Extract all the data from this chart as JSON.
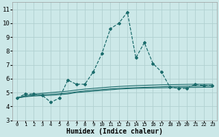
{
  "title": "",
  "xlabel": "Humidex (Indice chaleur)",
  "bg_color": "#cce8e8",
  "grid_color": "#b0d0d0",
  "line_color": "#1a6b6b",
  "xlim": [
    -0.5,
    23.5
  ],
  "ylim": [
    3,
    11.5
  ],
  "yticks": [
    3,
    4,
    5,
    6,
    7,
    8,
    9,
    10,
    11
  ],
  "xticks": [
    0,
    1,
    2,
    3,
    4,
    5,
    6,
    7,
    8,
    9,
    10,
    11,
    12,
    13,
    14,
    15,
    16,
    17,
    18,
    19,
    20,
    21,
    22,
    23
  ],
  "series": [
    [
      4.6,
      4.9,
      4.9,
      4.8,
      4.3,
      4.6,
      5.9,
      5.6,
      5.6,
      6.5,
      7.8,
      9.6,
      10.0,
      10.8,
      7.5,
      8.6,
      7.1,
      6.5,
      5.4,
      5.3,
      5.3,
      5.6,
      5.5,
      5.5
    ],
    [
      4.6,
      4.7,
      4.75,
      4.78,
      4.8,
      4.85,
      4.9,
      5.0,
      5.05,
      5.1,
      5.15,
      5.2,
      5.25,
      5.28,
      5.3,
      5.32,
      5.33,
      5.34,
      5.35,
      5.36,
      5.37,
      5.37,
      5.38,
      5.38
    ],
    [
      4.6,
      4.72,
      4.8,
      4.85,
      4.88,
      4.92,
      4.97,
      5.05,
      5.12,
      5.17,
      5.22,
      5.27,
      5.3,
      5.33,
      5.36,
      5.38,
      5.4,
      5.42,
      5.44,
      5.45,
      5.46,
      5.47,
      5.48,
      5.48
    ],
    [
      4.6,
      4.78,
      4.88,
      4.95,
      5.0,
      5.05,
      5.1,
      5.18,
      5.25,
      5.3,
      5.35,
      5.4,
      5.44,
      5.47,
      5.5,
      5.52,
      5.54,
      5.56,
      5.57,
      5.58,
      5.59,
      5.6,
      5.6,
      5.6
    ]
  ]
}
